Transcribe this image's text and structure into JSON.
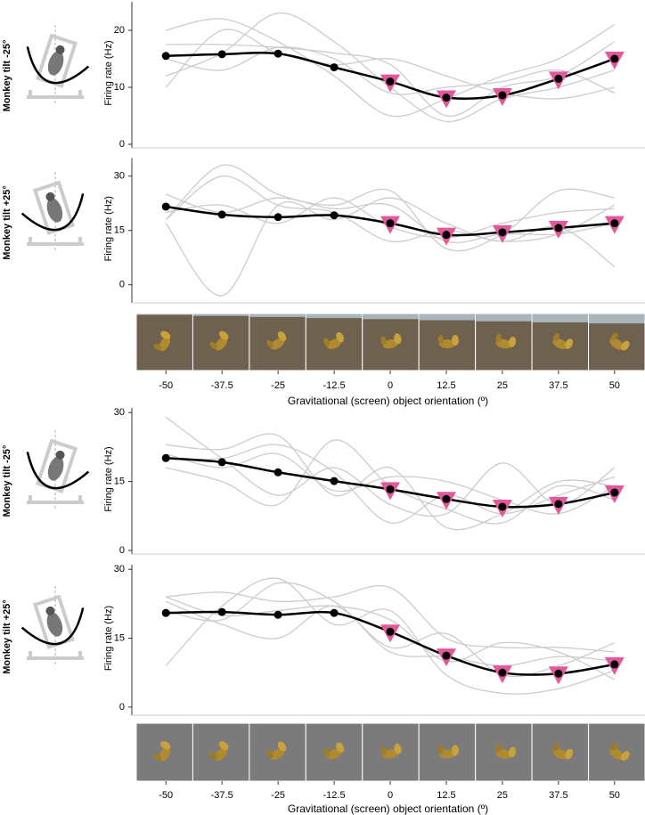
{
  "chart_data": [
    {
      "type": "line",
      "row_label": "Monkey tilt -25°",
      "ylabel": "Firing rate (Hz)",
      "x": [
        -50,
        -37.5,
        -25,
        -12.5,
        0,
        12.5,
        25,
        37.5,
        50
      ],
      "xlim": [
        -56,
        55
      ],
      "ylim": [
        0,
        25
      ],
      "yticks": [
        0,
        10,
        20
      ],
      "highlight": [
        false,
        false,
        false,
        false,
        true,
        true,
        true,
        true,
        true
      ],
      "highlight_color": "#e3579d",
      "series": [
        {
          "color": "#cccccc",
          "values": [
            20,
            22,
            18,
            12,
            5,
            8,
            12,
            15,
            21
          ]
        },
        {
          "color": "#cccccc",
          "values": [
            17.5,
            17.5,
            17,
            16,
            14,
            5,
            10,
            12,
            18
          ]
        },
        {
          "color": "#cccccc",
          "values": [
            12,
            16,
            23,
            18,
            10,
            4,
            8,
            10,
            13
          ]
        },
        {
          "color": "#cccccc",
          "values": [
            10,
            20,
            16,
            14,
            15,
            12,
            9,
            8,
            10
          ]
        },
        {
          "color": "#cccccc",
          "values": [
            15,
            13,
            17,
            15,
            9,
            10,
            11,
            13,
            9
          ]
        },
        {
          "color": "#000000",
          "values": [
            15.5,
            15.8,
            15.9,
            13.5,
            11,
            8.2,
            8.6,
            11.5,
            15
          ],
          "markers": true
        }
      ]
    },
    {
      "type": "line",
      "row_label": "Monkey tilt +25°",
      "ylabel": "Firing rate (Hz)",
      "x": [
        -50,
        -37.5,
        -25,
        -12.5,
        0,
        12.5,
        25,
        37.5,
        50
      ],
      "xlim": [
        -56,
        55
      ],
      "ylim": [
        -4,
        35
      ],
      "yticks": [
        0,
        15,
        30
      ],
      "xticks": [
        -50,
        -37.5,
        -25,
        -12.5,
        0,
        12.5,
        25,
        37.5,
        50
      ],
      "xlabel": "Gravitational (screen) object orientation (º)",
      "highlight": [
        false,
        false,
        false,
        false,
        true,
        true,
        true,
        true,
        true
      ],
      "highlight_color": "#e3579d",
      "series": [
        {
          "color": "#cccccc",
          "values": [
            18,
            33,
            25,
            22,
            26,
            10,
            14,
            26,
            24
          ]
        },
        {
          "color": "#cccccc",
          "values": [
            18,
            30,
            22,
            20,
            12,
            15,
            12,
            14,
            22
          ]
        },
        {
          "color": "#cccccc",
          "values": [
            17,
            -3,
            22,
            18,
            24,
            17,
            12,
            16,
            5
          ]
        },
        {
          "color": "#cccccc",
          "values": [
            25,
            20,
            24,
            21,
            22,
            12,
            14,
            14,
            17
          ]
        },
        {
          "color": "#cccccc",
          "values": [
            20,
            22,
            17,
            24,
            16,
            13,
            17,
            20,
            21
          ]
        },
        {
          "color": "#000000",
          "values": [
            21.6,
            19.4,
            18.7,
            19.2,
            17,
            13.8,
            14.5,
            15.7,
            17
          ],
          "markers": true
        }
      ]
    },
    {
      "type": "line",
      "row_label": "Monkey tilt -25°",
      "ylabel": "Firing rate (Hz)",
      "x": [
        -50,
        -37.5,
        -25,
        -12.5,
        0,
        12.5,
        25,
        37.5,
        50
      ],
      "xlim": [
        -56,
        55
      ],
      "ylim": [
        0,
        31
      ],
      "yticks": [
        0,
        15,
        30
      ],
      "highlight": [
        false,
        false,
        false,
        false,
        true,
        true,
        true,
        true,
        true
      ],
      "highlight_color": "#e3579d",
      "series": [
        {
          "color": "#cccccc",
          "values": [
            29,
            20,
            12,
            18,
            10,
            8,
            19,
            10,
            18
          ]
        },
        {
          "color": "#cccccc",
          "values": [
            23,
            22,
            25,
            12,
            18,
            5,
            8,
            15,
            14
          ]
        },
        {
          "color": "#cccccc",
          "values": [
            18,
            15,
            10,
            24,
            14,
            9,
            6,
            14,
            11
          ]
        },
        {
          "color": "#cccccc",
          "values": [
            20,
            20,
            23,
            17,
            6,
            12,
            8,
            12,
            16
          ]
        },
        {
          "color": "#cccccc",
          "values": [
            21,
            18,
            21,
            13,
            16,
            15,
            11,
            8,
            14
          ]
        },
        {
          "color": "#000000",
          "values": [
            20.1,
            19.2,
            17,
            15.1,
            13.3,
            11.2,
            9.5,
            10.1,
            12.6
          ],
          "markers": true
        }
      ]
    },
    {
      "type": "line",
      "row_label": "Monkey tilt +25°",
      "ylabel": "Firing rate (Hz)",
      "x": [
        -50,
        -37.5,
        -25,
        -12.5,
        0,
        12.5,
        25,
        37.5,
        50
      ],
      "xlim": [
        -56,
        55
      ],
      "ylim": [
        -1,
        31
      ],
      "yticks": [
        0,
        15,
        30
      ],
      "xticks": [
        -50,
        -37.5,
        -25,
        -12.5,
        0,
        12.5,
        25,
        37.5,
        50
      ],
      "xlabel": "Gravitational (screen) object orientation (º)",
      "highlight": [
        false,
        false,
        false,
        false,
        true,
        true,
        true,
        true,
        true
      ],
      "highlight_color": "#e3579d",
      "series": [
        {
          "color": "#cccccc",
          "values": [
            9,
            22,
            28,
            18,
            21,
            7,
            3,
            4,
            8
          ]
        },
        {
          "color": "#cccccc",
          "values": [
            24,
            25,
            23,
            24,
            26,
            15,
            13,
            13,
            12
          ]
        },
        {
          "color": "#cccccc",
          "values": [
            23,
            18,
            15,
            22,
            12,
            11,
            9,
            11,
            10
          ]
        },
        {
          "color": "#cccccc",
          "values": [
            21,
            19,
            27,
            23,
            13,
            16,
            7,
            9,
            14
          ]
        },
        {
          "color": "#cccccc",
          "values": [
            24,
            20,
            21,
            22,
            19,
            10,
            14,
            12,
            6
          ]
        },
        {
          "color": "#000000",
          "values": [
            20.5,
            20.7,
            20.1,
            20.5,
            16.4,
            11.2,
            7.5,
            7.3,
            9.3
          ],
          "markers": true
        }
      ]
    }
  ]
}
